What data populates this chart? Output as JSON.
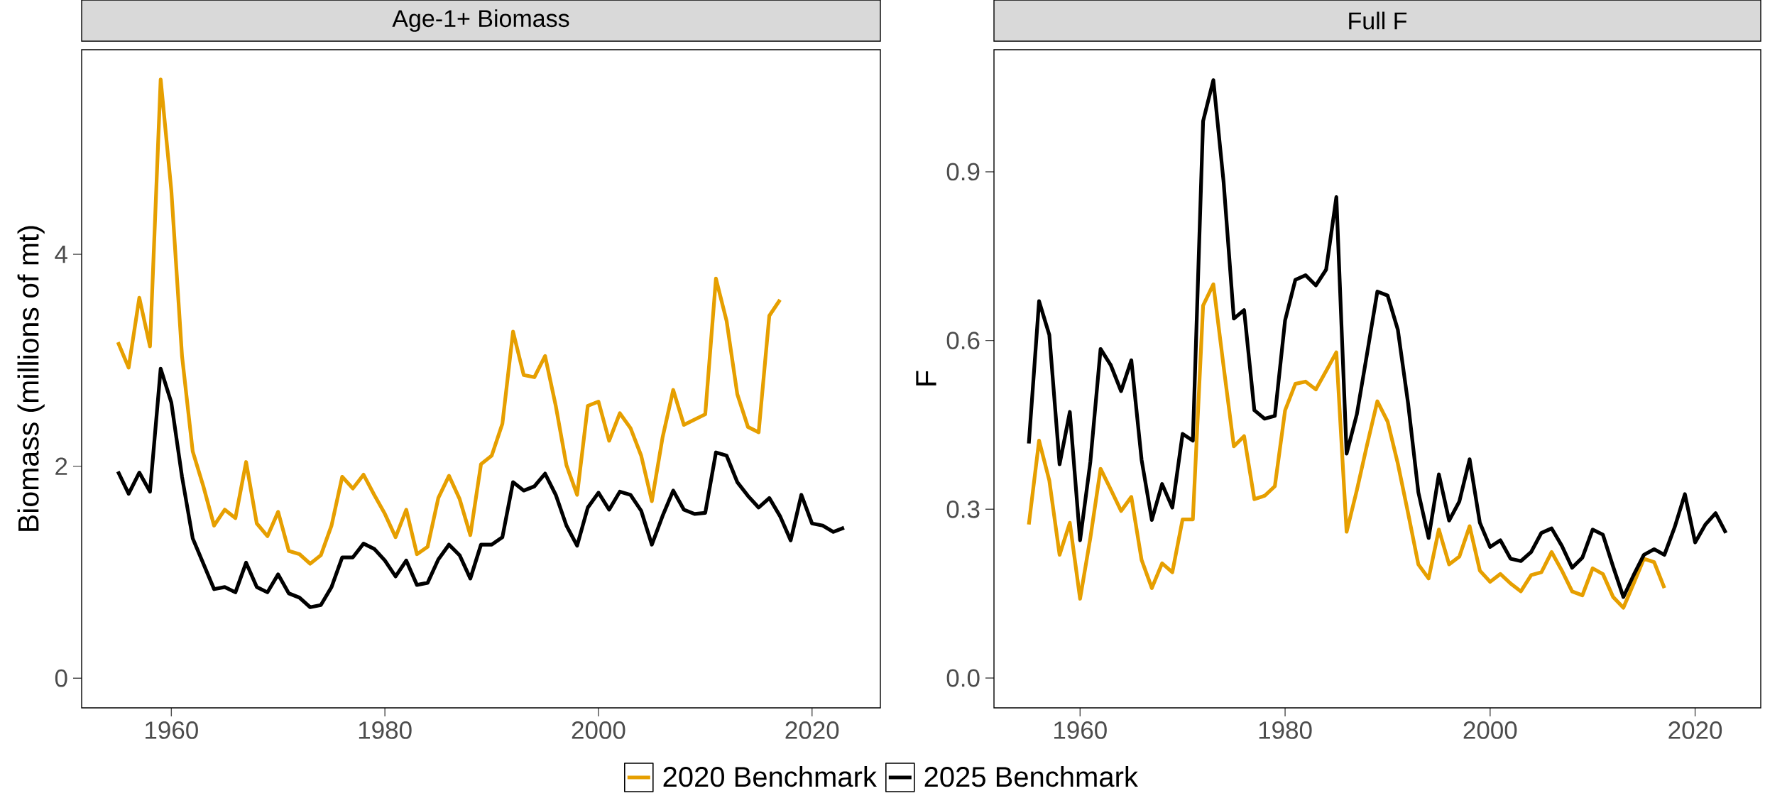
{
  "chart_data": [
    {
      "type": "line",
      "title": "Age-1+ Biomass",
      "ylabel": "Biomass (millions of mt)",
      "legend": "bottom",
      "x": [
        1955,
        1956,
        1957,
        1958,
        1959,
        1960,
        1961,
        1962,
        1963,
        1964,
        1965,
        1966,
        1967,
        1968,
        1969,
        1970,
        1971,
        1972,
        1973,
        1974,
        1975,
        1976,
        1977,
        1978,
        1979,
        1980,
        1981,
        1982,
        1983,
        1984,
        1985,
        1986,
        1987,
        1988,
        1989,
        1990,
        1991,
        1992,
        1993,
        1994,
        1995,
        1996,
        1997,
        1998,
        1999,
        2000,
        2001,
        2002,
        2003,
        2004,
        2005,
        2006,
        2007,
        2008,
        2009,
        2010,
        2011,
        2012,
        2013,
        2014,
        2015,
        2016,
        2017,
        2018,
        2019,
        2020,
        2021,
        2022,
        2023
      ],
      "xlim": [
        1951.6,
        2026.4
      ],
      "xticks": [
        1960,
        1980,
        2000,
        2020
      ],
      "ylim": [
        -0.28,
        5.93
      ],
      "yticks": [
        0,
        2,
        4
      ],
      "series": [
        {
          "name": "2020 Benchmark",
          "color": "#e69f00",
          "values": [
            3.17,
            2.93,
            3.59,
            3.13,
            5.65,
            4.6,
            3.04,
            2.14,
            1.81,
            1.44,
            1.59,
            1.51,
            2.04,
            1.46,
            1.34,
            1.57,
            1.2,
            1.17,
            1.08,
            1.16,
            1.44,
            1.9,
            1.79,
            1.92,
            1.73,
            1.55,
            1.33,
            1.59,
            1.17,
            1.24,
            1.7,
            1.91,
            1.69,
            1.35,
            2.02,
            2.1,
            2.4,
            3.27,
            2.86,
            2.84,
            3.04,
            2.57,
            2.01,
            1.73,
            2.57,
            2.61,
            2.24,
            2.5,
            2.36,
            2.1,
            1.67,
            2.27,
            2.72,
            2.39,
            2.44,
            2.49,
            3.77,
            3.37,
            2.68,
            2.37,
            2.32,
            3.42,
            3.57,
            null,
            null,
            null,
            null,
            null,
            null
          ]
        },
        {
          "name": "2025 Benchmark",
          "color": "#000000",
          "values": [
            1.95,
            1.74,
            1.94,
            1.76,
            2.92,
            2.6,
            1.9,
            1.32,
            1.08,
            0.84,
            0.86,
            0.81,
            1.09,
            0.86,
            0.81,
            0.98,
            0.8,
            0.76,
            0.67,
            0.69,
            0.86,
            1.14,
            1.14,
            1.27,
            1.22,
            1.11,
            0.96,
            1.11,
            0.88,
            0.9,
            1.12,
            1.26,
            1.16,
            0.94,
            1.26,
            1.26,
            1.33,
            1.85,
            1.77,
            1.81,
            1.93,
            1.73,
            1.44,
            1.25,
            1.61,
            1.75,
            1.59,
            1.76,
            1.73,
            1.58,
            1.26,
            1.53,
            1.77,
            1.59,
            1.55,
            1.56,
            2.13,
            2.1,
            1.85,
            1.72,
            1.61,
            1.7,
            1.53,
            1.3,
            1.73,
            1.46,
            1.44,
            1.38,
            1.42
          ]
        }
      ]
    },
    {
      "type": "line",
      "title": "Full F",
      "ylabel": "F",
      "x": [
        1955,
        1956,
        1957,
        1958,
        1959,
        1960,
        1961,
        1962,
        1963,
        1964,
        1965,
        1966,
        1967,
        1968,
        1969,
        1970,
        1971,
        1972,
        1973,
        1974,
        1975,
        1976,
        1977,
        1978,
        1979,
        1980,
        1981,
        1982,
        1983,
        1984,
        1985,
        1986,
        1987,
        1988,
        1989,
        1990,
        1991,
        1992,
        1993,
        1994,
        1995,
        1996,
        1997,
        1998,
        1999,
        2000,
        2001,
        2002,
        2003,
        2004,
        2005,
        2006,
        2007,
        2008,
        2009,
        2010,
        2011,
        2012,
        2013,
        2014,
        2015,
        2016,
        2017,
        2018,
        2019,
        2020,
        2021,
        2022,
        2023
      ],
      "xlim": [
        1951.6,
        2026.4
      ],
      "xticks": [
        1960,
        1980,
        2000,
        2020
      ],
      "ylim": [
        -0.053,
        1.117
      ],
      "yticks": [
        {
          "value": 0,
          "label": "0.0"
        },
        0.3,
        0.6,
        0.9
      ],
      "series": [
        {
          "color": "#e69f00",
          "values": [
            0.273,
            0.422,
            0.351,
            0.219,
            0.276,
            0.141,
            0.249,
            0.372,
            0.335,
            0.297,
            0.322,
            0.21,
            0.16,
            0.204,
            0.188,
            0.282,
            0.282,
            0.662,
            0.7,
            0.554,
            0.412,
            0.43,
            0.318,
            0.324,
            0.341,
            0.476,
            0.523,
            0.527,
            0.513,
            0.546,
            0.579,
            0.26,
            0.334,
            0.415,
            0.492,
            0.456,
            0.381,
            0.293,
            0.202,
            0.177,
            0.264,
            0.202,
            0.216,
            0.27,
            0.191,
            0.171,
            0.185,
            0.168,
            0.154,
            0.183,
            0.188,
            0.224,
            0.191,
            0.154,
            0.147,
            0.195,
            0.185,
            0.144,
            0.125,
            0.168,
            0.212,
            0.206,
            0.16,
            null,
            null,
            null,
            null,
            null,
            null
          ]
        },
        {
          "color": "#000000",
          "values": [
            0.417,
            0.67,
            0.61,
            0.38,
            0.473,
            0.245,
            0.384,
            0.585,
            0.556,
            0.51,
            0.565,
            0.388,
            0.281,
            0.345,
            0.303,
            0.434,
            0.422,
            0.99,
            1.063,
            0.882,
            0.639,
            0.654,
            0.476,
            0.461,
            0.466,
            0.636,
            0.708,
            0.716,
            0.698,
            0.726,
            0.855,
            0.399,
            0.469,
            0.577,
            0.687,
            0.68,
            0.619,
            0.488,
            0.33,
            0.249,
            0.362,
            0.28,
            0.314,
            0.389,
            0.276,
            0.233,
            0.245,
            0.212,
            0.208,
            0.224,
            0.258,
            0.266,
            0.235,
            0.196,
            0.214,
            0.264,
            0.255,
            0.198,
            0.144,
            0.183,
            0.219,
            0.229,
            0.219,
            0.268,
            0.327,
            0.241,
            0.273,
            0.293,
            0.258
          ]
        }
      ]
    }
  ]
}
